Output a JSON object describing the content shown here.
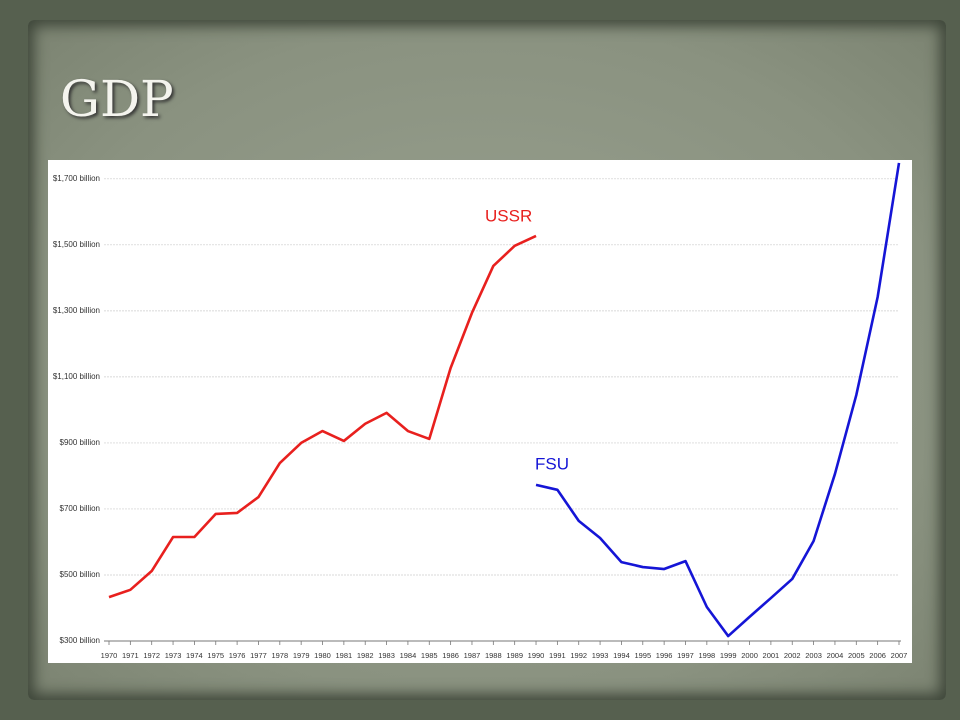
{
  "chart_data": {
    "type": "line",
    "title": "GDP",
    "categories": [
      "1970",
      "1971",
      "1972",
      "1973",
      "1974",
      "1975",
      "1976",
      "1977",
      "1978",
      "1979",
      "1980",
      "1981",
      "1982",
      "1983",
      "1984",
      "1985",
      "1986",
      "1987",
      "1988",
      "1989",
      "1990",
      "1991",
      "1992",
      "1993",
      "1994",
      "1995",
      "1996",
      "1997",
      "1998",
      "1999",
      "2000",
      "2001",
      "2002",
      "2003",
      "2004",
      "2005",
      "2006",
      "2007"
    ],
    "series": [
      {
        "name": "USSR",
        "color": "#e8201e",
        "values": [
          433,
          455,
          512,
          615,
          615,
          685,
          688,
          736,
          839,
          900,
          936,
          906,
          958,
          991,
          936,
          912,
          1127,
          1294,
          1436,
          1497,
          1527,
          null,
          null,
          null,
          null,
          null,
          null,
          null,
          null,
          null,
          null,
          null,
          null,
          null,
          null,
          null,
          null,
          null
        ]
      },
      {
        "name": "FSU",
        "color": "#1515d6",
        "values": [
          null,
          null,
          null,
          null,
          null,
          null,
          null,
          null,
          null,
          null,
          null,
          null,
          null,
          null,
          null,
          null,
          null,
          null,
          null,
          null,
          773,
          758,
          664,
          612,
          539,
          524,
          518,
          542,
          403,
          315,
          373,
          430,
          488,
          603,
          806,
          1045,
          1342,
          1748
        ]
      }
    ],
    "ylim": [
      300,
      1760
    ],
    "yticks": [
      {
        "value": 300,
        "label": "$300 billion"
      },
      {
        "value": 500,
        "label": "$500 billion"
      },
      {
        "value": 700,
        "label": "$700 billion"
      },
      {
        "value": 900,
        "label": "$900 billion"
      },
      {
        "value": 1100,
        "label": "$1,100 billion"
      },
      {
        "value": 1300,
        "label": "$1,300 billion"
      },
      {
        "value": 1500,
        "label": "$1,500 billion"
      },
      {
        "value": 1700,
        "label": "$1,700 billion"
      }
    ],
    "grid": true
  }
}
